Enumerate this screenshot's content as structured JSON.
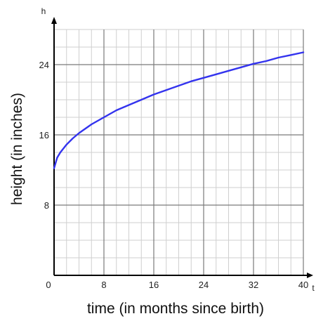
{
  "chart_data": {
    "type": "line",
    "title": "",
    "xlabel": "time (in months since birth)",
    "ylabel": "height (in inches)",
    "x_axis_var": "t",
    "y_axis_var": "h",
    "xlim": [
      0,
      40
    ],
    "ylim": [
      0,
      28
    ],
    "x_ticks": [
      0,
      8,
      16,
      24,
      32,
      40
    ],
    "y_ticks": [
      8,
      16,
      24
    ],
    "x_minor_step": 2,
    "y_minor_step": 2,
    "grid": true,
    "line_color": "#3333ee",
    "series": [
      {
        "x": [
          0,
          0.5,
          1,
          2,
          3,
          4,
          6,
          8,
          10,
          12,
          14,
          16,
          18,
          20,
          22,
          24,
          26,
          28,
          30,
          32,
          34,
          36,
          38,
          40
        ],
        "y": [
          12.2,
          13.4,
          14.0,
          14.9,
          15.6,
          16.2,
          17.2,
          18.0,
          18.8,
          19.4,
          20.0,
          20.6,
          21.1,
          21.6,
          22.1,
          22.5,
          22.9,
          23.3,
          23.7,
          24.1,
          24.4,
          24.8,
          25.1,
          25.4
        ]
      }
    ]
  }
}
